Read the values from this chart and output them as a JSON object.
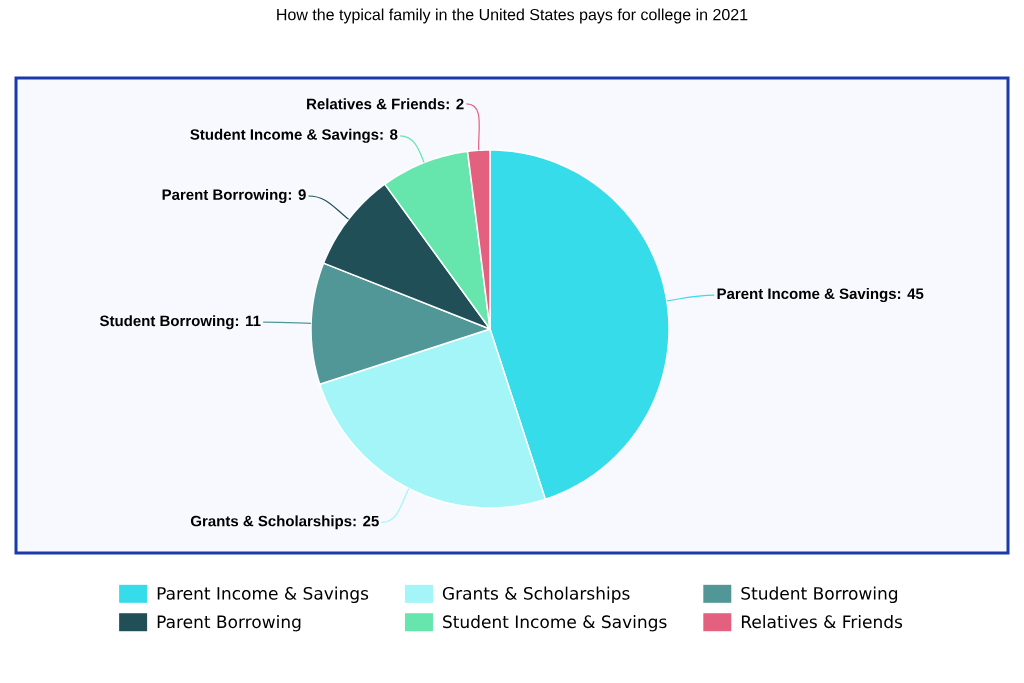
{
  "chart_data": {
    "type": "pie",
    "title": "How the typical family in the United States pays for college in 2021",
    "categories": [
      "Parent Income & Savings",
      "Grants & Scholarships",
      "Student Borrowing",
      "Parent Borrowing",
      "Student Income & Savings",
      "Relatives & Friends"
    ],
    "values": [
      45,
      25,
      11,
      9,
      8,
      2
    ],
    "value_labels": [
      "Parent Income & Savings: 45",
      "Grants & Scholarships: 25",
      "Student Borrowing: 11",
      "Parent Borrowing: 9",
      "Student Income & Savings: 8",
      "Relatives & Friends: 2"
    ],
    "colors": [
      "#36dce9",
      "#a3f5f7",
      "#529798",
      "#214f58",
      "#66e6ad",
      "#e4607f"
    ],
    "legend": "bottom"
  }
}
